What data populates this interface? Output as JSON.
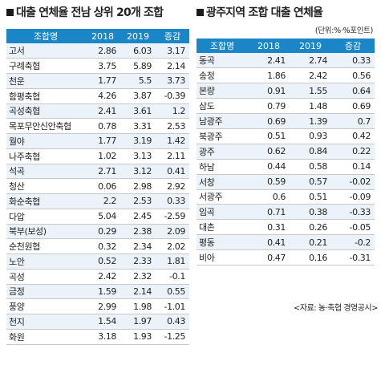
{
  "left": {
    "title": "대출 연체율 전남 상위 20개 조합",
    "headers": [
      "조합명",
      "2018",
      "2019",
      "증감"
    ],
    "rows": [
      [
        "고서",
        "2.86",
        "6.03",
        "3.17"
      ],
      [
        "구례축협",
        "3.75",
        "5.89",
        "2.14"
      ],
      [
        "천운",
        "1.77",
        "5.5",
        "3.73"
      ],
      [
        "함평축협",
        "4.26",
        "3.87",
        "-0.39"
      ],
      [
        "곡성축협",
        "2.41",
        "3.61",
        "1.2"
      ],
      [
        "목포무안신안축협",
        "0.78",
        "3.31",
        "2.53"
      ],
      [
        "월야",
        "1.77",
        "3.19",
        "1.42"
      ],
      [
        "나주축협",
        "1.02",
        "3.13",
        "2.11"
      ],
      [
        "석곡",
        "2.71",
        "3.12",
        "0.41"
      ],
      [
        "청산",
        "0.06",
        "2.98",
        "2.92"
      ],
      [
        "화순축협",
        "2.2",
        "2.53",
        "0.33"
      ],
      [
        "다압",
        "5.04",
        "2.45",
        "-2.59"
      ],
      [
        "북부(보성)",
        "0.29",
        "2.38",
        "2.09"
      ],
      [
        "순천원협",
        "0.32",
        "2.34",
        "2.02"
      ],
      [
        "노안",
        "0.52",
        "2.33",
        "1.81"
      ],
      [
        "곡성",
        "2.42",
        "2.32",
        "-0.1"
      ],
      [
        "금정",
        "1.59",
        "2.14",
        "0.55"
      ],
      [
        "풍양",
        "2.99",
        "1.98",
        "-1.01"
      ],
      [
        "천지",
        "1.54",
        "1.97",
        "0.43"
      ],
      [
        "화원",
        "3.18",
        "1.93",
        "-1.25"
      ]
    ]
  },
  "right": {
    "title": "광주지역 조합 대출 연체율",
    "unit": "(단위:%·%포인트)",
    "headers": [
      "조합명",
      "2018",
      "2019",
      "증감"
    ],
    "rows": [
      [
        "동곡",
        "2.41",
        "2.74",
        "0.33"
      ],
      [
        "송정",
        "1.86",
        "2.42",
        "0.56"
      ],
      [
        "본량",
        "0.91",
        "1.55",
        "0.64"
      ],
      [
        "삼도",
        "0.79",
        "1.48",
        "0.69"
      ],
      [
        "남광주",
        "0.69",
        "1.39",
        "0.7"
      ],
      [
        "북광주",
        "0.51",
        "0.93",
        "0.42"
      ],
      [
        "광주",
        "0.62",
        "0.84",
        "0.22"
      ],
      [
        "하남",
        "0.44",
        "0.58",
        "0.14"
      ],
      [
        "서창",
        "0.59",
        "0.57",
        "-0.02"
      ],
      [
        "서광주",
        "0.6",
        "0.51",
        "-0.09"
      ],
      [
        "임곡",
        "0.71",
        "0.38",
        "-0.33"
      ],
      [
        "대촌",
        "0.31",
        "0.26",
        "-0.05"
      ],
      [
        "평동",
        "0.41",
        "0.21",
        "-0.2"
      ],
      [
        "비아",
        "0.47",
        "0.16",
        "-0.31"
      ]
    ]
  },
  "source": "<자료: 농·축협 경영공시>"
}
